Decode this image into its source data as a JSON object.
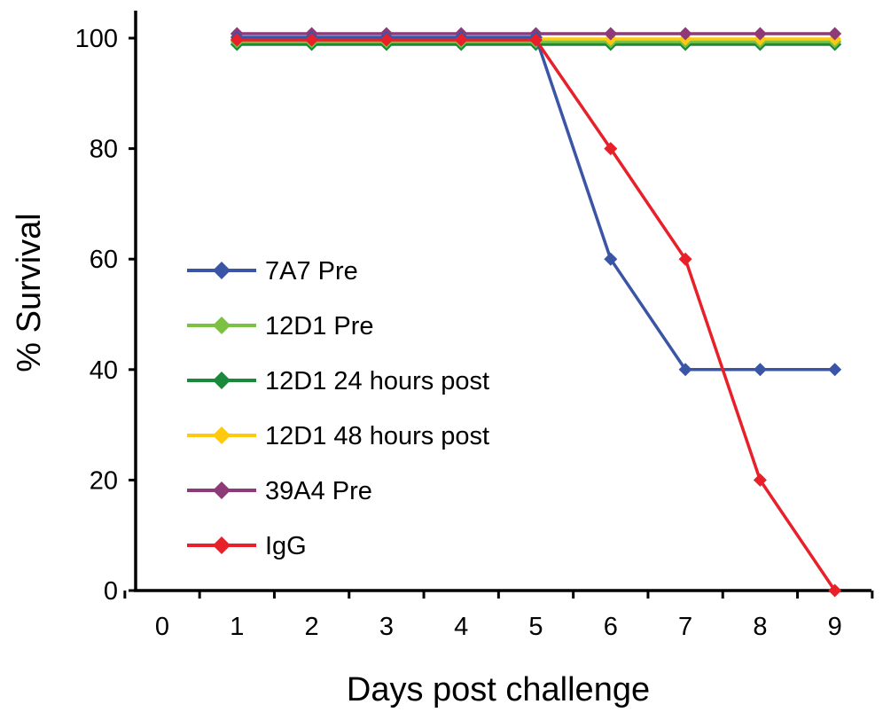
{
  "chart_data": {
    "type": "line",
    "title": "",
    "xlabel": "Days post challenge",
    "ylabel": "% Survival",
    "xlim": [
      0,
      9
    ],
    "ylim": [
      0,
      100
    ],
    "x_ticks": [
      0,
      1,
      2,
      3,
      4,
      5,
      6,
      7,
      8,
      9
    ],
    "y_ticks": [
      0,
      20,
      40,
      60,
      80,
      100
    ],
    "grid": false,
    "legend_position": "center-left",
    "series": [
      {
        "name": "7A7 Pre",
        "color": "#3b55a6",
        "marker": "diamond",
        "x": [
          1,
          2,
          3,
          4,
          5,
          6,
          7,
          8,
          9
        ],
        "y": [
          100,
          100,
          100,
          100,
          100,
          60,
          40,
          40,
          40
        ]
      },
      {
        "name": "12D1 Pre",
        "color": "#7cc142",
        "marker": "diamond",
        "x": [
          1,
          2,
          3,
          4,
          5,
          6,
          7,
          8,
          9
        ],
        "y": [
          100,
          100,
          100,
          100,
          100,
          100,
          100,
          100,
          100
        ]
      },
      {
        "name": "12D1 24 hours post",
        "color": "#1a8a3a",
        "marker": "diamond",
        "x": [
          1,
          2,
          3,
          4,
          5,
          6,
          7,
          8,
          9
        ],
        "y": [
          100,
          100,
          100,
          100,
          100,
          100,
          100,
          100,
          100
        ]
      },
      {
        "name": "12D1 48 hours post",
        "color": "#ffc90e",
        "marker": "diamond",
        "x": [
          1,
          2,
          3,
          4,
          5,
          6,
          7,
          8,
          9
        ],
        "y": [
          100,
          100,
          100,
          100,
          100,
          100,
          100,
          100,
          100
        ]
      },
      {
        "name": "39A4 Pre",
        "color": "#8e3a78",
        "marker": "diamond",
        "x": [
          1,
          2,
          3,
          4,
          5,
          6,
          7,
          8,
          9
        ],
        "y": [
          100,
          100,
          100,
          100,
          100,
          100,
          100,
          100,
          100
        ]
      },
      {
        "name": "IgG",
        "color": "#e8202a",
        "marker": "diamond",
        "x": [
          1,
          2,
          3,
          4,
          5,
          6,
          7,
          8,
          9
        ],
        "y": [
          100,
          100,
          100,
          100,
          100,
          80,
          60,
          20,
          0
        ]
      }
    ]
  }
}
